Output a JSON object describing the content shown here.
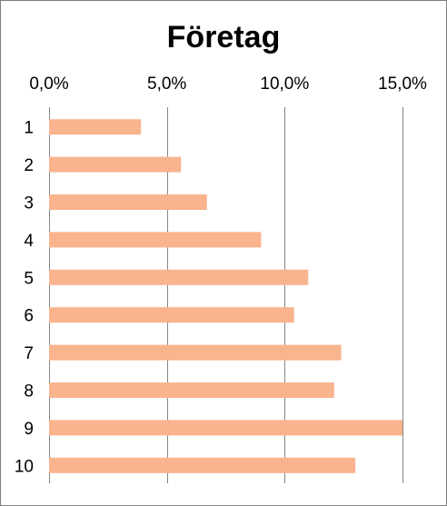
{
  "chart_data": {
    "type": "bar",
    "orientation": "horizontal",
    "title": "Företag",
    "xlabel": "",
    "ylabel": "",
    "categories": [
      "1",
      "2",
      "3",
      "4",
      "5",
      "6",
      "7",
      "8",
      "9",
      "10"
    ],
    "values": [
      3.9,
      5.6,
      6.7,
      9.0,
      11.0,
      10.4,
      12.4,
      12.1,
      15.0,
      13.0
    ],
    "value_unit": "%",
    "xlim": [
      0,
      15
    ],
    "xticks": [
      "0,0%",
      "5,0%",
      "10,0%",
      "15,0%"
    ],
    "xtick_values": [
      0,
      5,
      10,
      15
    ],
    "x_axis_position": "top",
    "grid": true,
    "bar_color": "#F9B48E",
    "legend": "none"
  }
}
